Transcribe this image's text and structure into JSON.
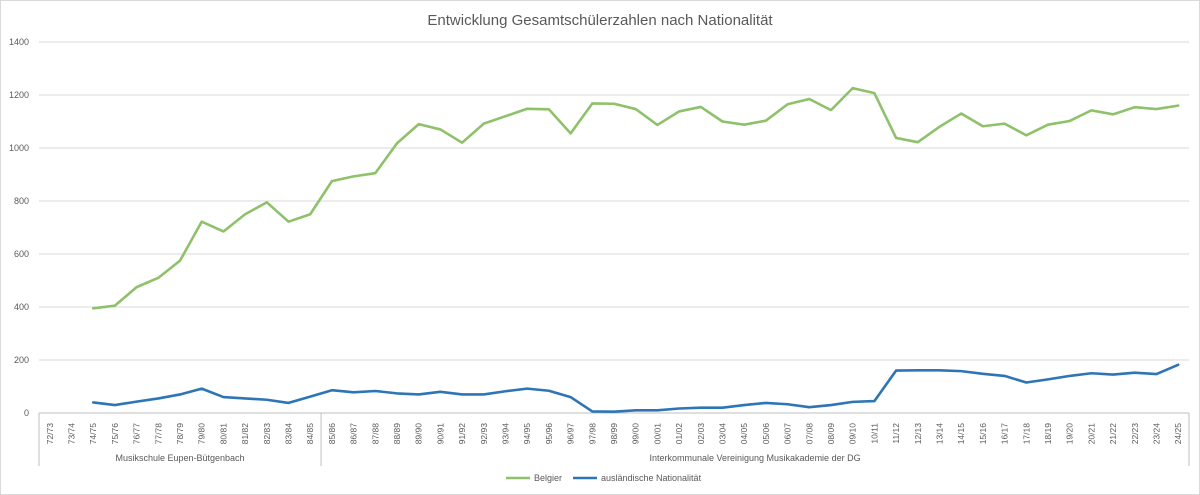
{
  "chart_data": {
    "type": "line",
    "title": "Entwicklung Gesamtschülerzahlen nach Nationalität",
    "xlabel": "",
    "ylabel": "",
    "ylim": [
      0,
      1400
    ],
    "yticks": [
      0,
      200,
      400,
      600,
      800,
      1000,
      1200,
      1400
    ],
    "grid": true,
    "legend_position": "bottom",
    "categories": [
      "72/73",
      "73/74",
      "74/75",
      "75/76",
      "76/77",
      "77/78",
      "78/79",
      "79/80",
      "80/81",
      "81/82",
      "82/83",
      "83/84",
      "84/85",
      "85/86",
      "86/87",
      "87/88",
      "88/89",
      "89/90",
      "90/91",
      "91/92",
      "92/93",
      "93/94",
      "94/95",
      "95/96",
      "96/97",
      "97/98",
      "98/99",
      "99/00",
      "00/01",
      "01/02",
      "02/03",
      "03/04",
      "04/05",
      "05/06",
      "06/07",
      "07/08",
      "08/09",
      "09/10",
      "10/11",
      "11/12",
      "12/13",
      "13/14",
      "14/15",
      "15/16",
      "16/17",
      "17/18",
      "18/19",
      "19/20",
      "20/21",
      "21/22",
      "22/23",
      "23/24",
      "24/25"
    ],
    "groups": [
      {
        "label": "Musikschule Eupen-Bütgenbach",
        "start_index": 0,
        "end_index": 12
      },
      {
        "label": "Interkommunale Vereinigung Musikakademie der DG",
        "start_index": 13,
        "end_index": 52
      }
    ],
    "series": [
      {
        "name": "Belgier",
        "color": "#8ec16a",
        "values": [
          null,
          null,
          395,
          405,
          475,
          510,
          575,
          722,
          685,
          750,
          795,
          722,
          750,
          875,
          893,
          905,
          1018,
          1090,
          1070,
          1020,
          1092,
          1120,
          1148,
          1146,
          1055,
          1168,
          1167,
          1147,
          1087,
          1138,
          1155,
          1100,
          1088,
          1103,
          1165,
          1185,
          1143,
          1226,
          1207,
          1038,
          1022,
          1080,
          1130,
          1082,
          1092,
          1048,
          1088,
          1102,
          1142,
          1127,
          1154,
          1147,
          1160
        ]
      },
      {
        "name": "ausländische Nationalität",
        "color": "#2e75b6",
        "values": [
          null,
          null,
          40,
          30,
          43,
          55,
          70,
          92,
          60,
          55,
          50,
          38,
          62,
          86,
          78,
          83,
          74,
          70,
          80,
          70,
          70,
          82,
          92,
          84,
          60,
          6,
          5,
          10,
          10,
          17,
          20,
          20,
          30,
          38,
          33,
          22,
          30,
          42,
          45,
          160,
          161,
          161,
          158,
          148,
          140,
          115,
          127,
          140,
          150,
          145,
          152,
          147,
          182
        ]
      }
    ]
  }
}
